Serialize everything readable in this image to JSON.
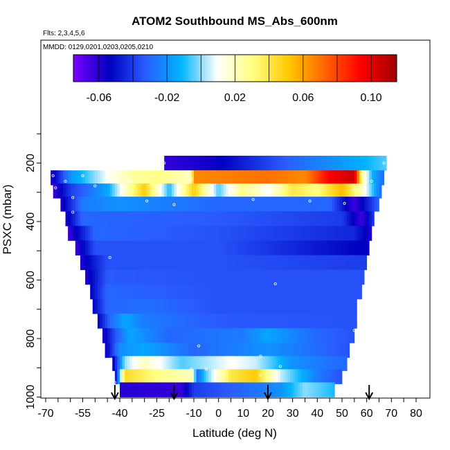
{
  "chart_data": {
    "type": "heatmap",
    "title": "ATOM2 Southbound MS_Abs_600nm",
    "flights_note": "Flts: 2,3,4,5,6",
    "dates_note": "MMDD: 0129,0201,0203,0205,0210",
    "xlabel": "Latitude (deg N)",
    "ylabel": "PSXC (mbar)",
    "xlim": [
      -70,
      80
    ],
    "ylim": [
      1000,
      0
    ],
    "x_ticks": [
      "-70",
      "-55",
      "-40",
      "-25",
      "-10",
      "0",
      "10",
      "20",
      "30",
      "40",
      "50",
      "60",
      "70",
      "80"
    ],
    "y_ticks": [
      "200",
      "400",
      "600",
      "800",
      "1000"
    ],
    "colorbar": {
      "min": -0.075,
      "max": 0.115,
      "tick_labels": [
        "-0.06",
        "-0.02",
        "0.02",
        "0.06",
        "0.10"
      ],
      "tick_values": [
        -0.06,
        -0.02,
        0.02,
        0.06,
        0.1
      ],
      "colors": [
        "#7a00ff",
        "#0000c0",
        "#2a5bff",
        "#00b4ff",
        "#ffffff",
        "#ffff80",
        "#ffc800",
        "#ff6400",
        "#ff0000",
        "#a00000"
      ]
    },
    "arrows_latitude": [
      -42,
      -18,
      20,
      61
    ],
    "layers": [
      {
        "p": 200,
        "lat": [
          -22,
          68
        ],
        "anoms": [
          {
            "lat": -22,
            "v": -0.063
          },
          {
            "lat": 0,
            "v": -0.055
          },
          {
            "lat": 30,
            "v": -0.03
          },
          {
            "lat": 55,
            "v": -0.015
          },
          {
            "lat": 68,
            "v": -0.005
          }
        ]
      },
      {
        "p": 250,
        "lat": [
          -68,
          67
        ],
        "anoms": [
          {
            "lat": -68,
            "v": -0.062
          },
          {
            "lat": -60,
            "v": -0.02
          },
          {
            "lat": -45,
            "v": 0.01
          },
          {
            "lat": -35,
            "v": 0.025
          },
          {
            "lat": -25,
            "v": 0.03
          },
          {
            "lat": -11,
            "v": 0.02
          },
          {
            "lat": -10,
            "v": 0.065
          },
          {
            "lat": 20,
            "v": 0.07
          },
          {
            "lat": 35,
            "v": 0.065
          },
          {
            "lat": 45,
            "v": 0.095
          },
          {
            "lat": 55,
            "v": 0.105
          },
          {
            "lat": 58,
            "v": 0.03
          },
          {
            "lat": 62,
            "v": -0.01
          },
          {
            "lat": 67,
            "v": -0.03
          }
        ]
      },
      {
        "p": 295,
        "lat": [
          -67,
          66
        ],
        "anoms": [
          {
            "lat": -67,
            "v": -0.065
          },
          {
            "lat": -60,
            "v": -0.04
          },
          {
            "lat": -45,
            "v": -0.015
          },
          {
            "lat": -36,
            "v": 0.025
          },
          {
            "lat": -30,
            "v": 0.05
          },
          {
            "lat": -20,
            "v": -0.01
          },
          {
            "lat": -10,
            "v": 0.05
          },
          {
            "lat": 0,
            "v": -0.005
          },
          {
            "lat": 10,
            "v": 0.03
          },
          {
            "lat": 20,
            "v": 0.01
          },
          {
            "lat": 30,
            "v": 0.04
          },
          {
            "lat": 40,
            "v": 0.03
          },
          {
            "lat": 50,
            "v": 0.055
          },
          {
            "lat": 58,
            "v": 0.02
          },
          {
            "lat": 66,
            "v": -0.03
          }
        ]
      },
      {
        "p": 340,
        "lat": [
          -64,
          65
        ],
        "anoms": [
          {
            "lat": -64,
            "v": -0.06
          },
          {
            "lat": -55,
            "v": -0.025
          },
          {
            "lat": -40,
            "v": -0.02
          },
          {
            "lat": 0,
            "v": -0.03
          },
          {
            "lat": 45,
            "v": -0.03
          },
          {
            "lat": 55,
            "v": -0.065
          },
          {
            "lat": 65,
            "v": -0.03
          }
        ]
      },
      {
        "p": 390,
        "lat": [
          -62,
          63
        ],
        "anoms": [
          {
            "lat": -62,
            "v": -0.06
          },
          {
            "lat": -55,
            "v": -0.03
          },
          {
            "lat": 0,
            "v": -0.033
          },
          {
            "lat": 50,
            "v": -0.04
          },
          {
            "lat": 58,
            "v": -0.065
          },
          {
            "lat": 63,
            "v": -0.04
          }
        ]
      },
      {
        "p": 440,
        "lat": [
          -61,
          62
        ],
        "anoms": [
          {
            "lat": -61,
            "v": -0.065
          },
          {
            "lat": -50,
            "v": -0.03
          },
          {
            "lat": 0,
            "v": -0.035
          },
          {
            "lat": 55,
            "v": -0.045
          },
          {
            "lat": 62,
            "v": -0.06
          }
        ]
      },
      {
        "p": 490,
        "lat": [
          -58,
          61
        ],
        "anoms": [
          {
            "lat": -58,
            "v": -0.065
          },
          {
            "lat": -50,
            "v": -0.035
          },
          {
            "lat": 0,
            "v": -0.035
          },
          {
            "lat": 61,
            "v": -0.055
          }
        ]
      },
      {
        "p": 540,
        "lat": [
          -56,
          60
        ],
        "anoms": [
          {
            "lat": -56,
            "v": -0.06
          },
          {
            "lat": -45,
            "v": -0.035
          },
          {
            "lat": 0,
            "v": -0.035
          },
          {
            "lat": 60,
            "v": -0.04
          }
        ]
      },
      {
        "p": 590,
        "lat": [
          -54,
          59
        ],
        "anoms": [
          {
            "lat": -54,
            "v": -0.06
          },
          {
            "lat": -45,
            "v": -0.033
          },
          {
            "lat": 0,
            "v": -0.035
          },
          {
            "lat": 59,
            "v": -0.035
          }
        ]
      },
      {
        "p": 640,
        "lat": [
          -52,
          58
        ],
        "anoms": [
          {
            "lat": -52,
            "v": -0.055
          },
          {
            "lat": -45,
            "v": -0.03
          },
          {
            "lat": 0,
            "v": -0.035
          },
          {
            "lat": 58,
            "v": -0.035
          }
        ]
      },
      {
        "p": 690,
        "lat": [
          -51,
          56
        ],
        "anoms": [
          {
            "lat": -51,
            "v": -0.055
          },
          {
            "lat": -45,
            "v": -0.03
          },
          {
            "lat": -30,
            "v": -0.028
          },
          {
            "lat": 0,
            "v": -0.035
          },
          {
            "lat": 56,
            "v": -0.035
          }
        ]
      },
      {
        "p": 740,
        "lat": [
          -49,
          56
        ],
        "anoms": [
          {
            "lat": -49,
            "v": -0.055
          },
          {
            "lat": -44,
            "v": -0.03
          },
          {
            "lat": -38,
            "v": -0.015
          },
          {
            "lat": -30,
            "v": -0.025
          },
          {
            "lat": 0,
            "v": -0.033
          },
          {
            "lat": 56,
            "v": -0.035
          }
        ]
      },
      {
        "p": 790,
        "lat": [
          -47,
          55
        ],
        "anoms": [
          {
            "lat": -47,
            "v": -0.06
          },
          {
            "lat": -42,
            "v": -0.035
          },
          {
            "lat": -36,
            "v": -0.015
          },
          {
            "lat": -20,
            "v": -0.03
          },
          {
            "lat": 10,
            "v": -0.025
          },
          {
            "lat": 20,
            "v": -0.015
          },
          {
            "lat": 40,
            "v": -0.03
          },
          {
            "lat": 55,
            "v": -0.035
          }
        ]
      },
      {
        "p": 840,
        "lat": [
          -46,
          53
        ],
        "anoms": [
          {
            "lat": -46,
            "v": -0.06
          },
          {
            "lat": -40,
            "v": -0.02
          },
          {
            "lat": -30,
            "v": -0.015
          },
          {
            "lat": -10,
            "v": -0.03
          },
          {
            "lat": 20,
            "v": -0.02
          },
          {
            "lat": 53,
            "v": -0.035
          }
        ]
      },
      {
        "p": 885,
        "lat": [
          -43,
          52
        ],
        "anoms": [
          {
            "lat": -43,
            "v": -0.06
          },
          {
            "lat": -38,
            "v": 0.0
          },
          {
            "lat": -30,
            "v": 0.02
          },
          {
            "lat": -15,
            "v": -0.005
          },
          {
            "lat": -8,
            "v": 0.0
          },
          {
            "lat": 5,
            "v": 0.01
          },
          {
            "lat": 15,
            "v": 0.005
          },
          {
            "lat": 30,
            "v": -0.02
          },
          {
            "lat": 52,
            "v": -0.03
          }
        ]
      },
      {
        "p": 930,
        "lat": [
          -42,
          50
        ],
        "anoms": [
          {
            "lat": -42,
            "v": -0.06
          },
          {
            "lat": -38,
            "v": 0.045
          },
          {
            "lat": -25,
            "v": 0.03
          },
          {
            "lat": -10,
            "v": 0.02
          },
          {
            "lat": -9,
            "v": -0.03
          },
          {
            "lat": -5,
            "v": -0.005
          },
          {
            "lat": 5,
            "v": 0.04
          },
          {
            "lat": 15,
            "v": 0.05
          },
          {
            "lat": 25,
            "v": 0.005
          },
          {
            "lat": 40,
            "v": -0.025
          },
          {
            "lat": 50,
            "v": -0.035
          }
        ]
      },
      {
        "p": 975,
        "lat": [
          -40,
          47
        ],
        "anoms": [
          {
            "lat": -40,
            "v": -0.06
          },
          {
            "lat": -15,
            "v": -0.063
          },
          {
            "lat": -10,
            "v": -0.04
          },
          {
            "lat": 10,
            "v": -0.03
          },
          {
            "lat": 25,
            "v": -0.02
          },
          {
            "lat": 35,
            "v": 0.0
          },
          {
            "lat": 47,
            "v": -0.01
          }
        ]
      }
    ],
    "points": [
      {
        "lat": -22,
        "p": 200
      },
      {
        "lat": 67,
        "p": 200
      },
      {
        "lat": -67,
        "p": 243
      },
      {
        "lat": -55,
        "p": 243
      },
      {
        "lat": -27,
        "p": 245
      },
      {
        "lat": -13,
        "p": 235
      },
      {
        "lat": -11,
        "p": 255
      },
      {
        "lat": 58,
        "p": 240
      },
      {
        "lat": -62,
        "p": 262
      },
      {
        "lat": -37,
        "p": 262
      },
      {
        "lat": -36,
        "p": 262
      },
      {
        "lat": 62,
        "p": 262
      },
      {
        "lat": -66,
        "p": 285
      },
      {
        "lat": -50,
        "p": 278
      },
      {
        "lat": 25,
        "p": 275
      },
      {
        "lat": 55,
        "p": 288
      },
      {
        "lat": -59,
        "p": 318
      },
      {
        "lat": -2,
        "p": 310
      },
      {
        "lat": 11,
        "p": 290
      },
      {
        "lat": -18,
        "p": 342
      },
      {
        "lat": -29,
        "p": 330
      },
      {
        "lat": 14,
        "p": 325
      },
      {
        "lat": 37,
        "p": 330
      },
      {
        "lat": 51,
        "p": 338
      },
      {
        "lat": -59,
        "p": 368
      },
      {
        "lat": -44,
        "p": 523
      },
      {
        "lat": 23,
        "p": 613
      },
      {
        "lat": 55,
        "p": 772
      },
      {
        "lat": -8,
        "p": 825
      },
      {
        "lat": 17,
        "p": 860
      },
      {
        "lat": -5,
        "p": 905
      },
      {
        "lat": -11,
        "p": 905
      },
      {
        "lat": 25,
        "p": 895
      },
      {
        "lat": -42,
        "p": 950
      },
      {
        "lat": 17,
        "p": 925
      }
    ]
  }
}
